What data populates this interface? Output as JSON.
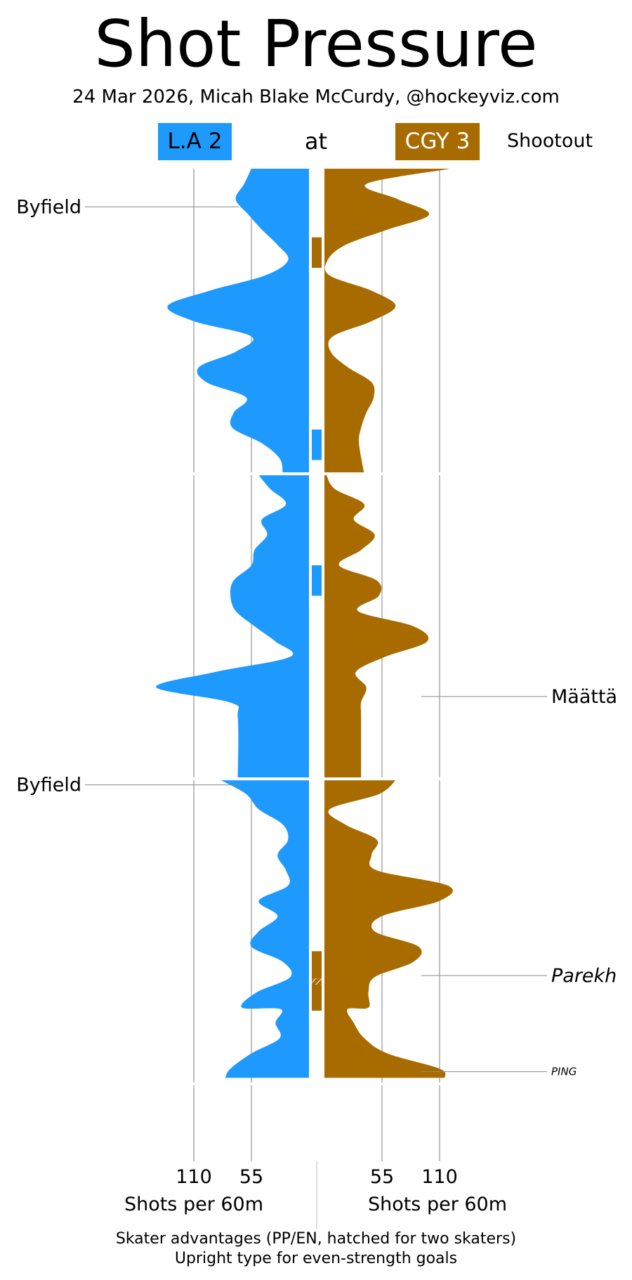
{
  "title": "Shot Pressure",
  "subtitle": "24 Mar 2026, Micah Blake McCurdy, @hockeyviz.com",
  "header": {
    "away_team": "L.A 2",
    "at": "at",
    "home_team": "CGY 3",
    "status": "Shootout"
  },
  "colors": {
    "away": "#1e9aff",
    "home": "#a86b00",
    "grid": "#aaaaaa"
  },
  "chart_data": {
    "type": "area",
    "orientation": "vertical time axis, mirrored horizontal magnitude",
    "x_unit": "game minutes",
    "period_breaks": [
      20,
      40,
      60
    ],
    "time_range": [
      0,
      65
    ],
    "ylabel_left": "Shots per 60m",
    "ylabel_right": "Shots per 60m",
    "ticks": [
      110,
      55
    ],
    "tick_labels": [
      "110",
      "55"
    ],
    "xlim": [
      0,
      150
    ],
    "series": [
      {
        "name": "L.A 2",
        "side": "left",
        "points": [
          [
            0,
            55
          ],
          [
            1,
            62
          ],
          [
            2,
            70
          ],
          [
            3,
            58
          ],
          [
            4,
            45
          ],
          [
            5,
            30
          ],
          [
            6,
            20
          ],
          [
            7,
            42
          ],
          [
            8,
            95
          ],
          [
            9,
            135
          ],
          [
            10,
            110
          ],
          [
            11,
            55
          ],
          [
            12,
            70
          ],
          [
            13,
            105
          ],
          [
            14,
            98
          ],
          [
            15,
            60
          ],
          [
            16,
            72
          ],
          [
            17,
            73
          ],
          [
            18,
            45
          ],
          [
            19,
            28
          ],
          [
            20,
            25
          ],
          [
            20.1,
            48
          ],
          [
            21,
            37
          ],
          [
            22,
            22
          ],
          [
            23,
            45
          ],
          [
            24,
            40
          ],
          [
            25,
            52
          ],
          [
            26,
            55
          ],
          [
            27,
            72
          ],
          [
            28,
            75
          ],
          [
            29,
            70
          ],
          [
            30,
            52
          ],
          [
            31,
            32
          ],
          [
            32,
            18
          ],
          [
            33,
            90
          ],
          [
            34,
            146
          ],
          [
            35,
            75
          ],
          [
            36,
            68
          ],
          [
            40,
            68
          ],
          [
            40.1,
            84
          ],
          [
            41,
            60
          ],
          [
            42,
            48
          ],
          [
            43,
            25
          ],
          [
            44,
            20
          ],
          [
            45,
            30
          ],
          [
            46,
            22
          ],
          [
            47,
            20
          ],
          [
            48,
            48
          ],
          [
            49,
            30
          ],
          [
            50,
            48
          ],
          [
            51,
            55
          ],
          [
            52,
            25
          ],
          [
            53,
            18
          ],
          [
            54,
            50
          ],
          [
            55,
            64
          ],
          [
            55.1,
            27
          ],
          [
            56,
            32
          ],
          [
            57,
            28
          ],
          [
            58,
            55
          ],
          [
            59,
            75
          ],
          [
            59.6,
            80
          ]
        ]
      },
      {
        "name": "CGY 3",
        "side": "right",
        "points": [
          [
            0,
            120
          ],
          [
            1,
            40
          ],
          [
            2,
            70
          ],
          [
            3,
            100
          ],
          [
            4,
            60
          ],
          [
            5,
            20
          ],
          [
            6,
            3
          ],
          [
            7,
            5
          ],
          [
            8,
            45
          ],
          [
            9,
            68
          ],
          [
            10,
            45
          ],
          [
            11,
            8
          ],
          [
            12,
            6
          ],
          [
            13,
            22
          ],
          [
            14,
            45
          ],
          [
            15,
            47
          ],
          [
            16,
            40
          ],
          [
            17,
            35
          ],
          [
            18,
            33
          ],
          [
            20,
            38
          ],
          [
            20.1,
            2
          ],
          [
            21,
            10
          ],
          [
            22,
            38
          ],
          [
            23,
            28
          ],
          [
            24,
            48
          ],
          [
            25,
            35
          ],
          [
            26,
            14
          ],
          [
            27,
            50
          ],
          [
            28,
            52
          ],
          [
            29,
            32
          ],
          [
            30,
            85
          ],
          [
            31,
            98
          ],
          [
            32,
            58
          ],
          [
            33,
            30
          ],
          [
            34,
            40
          ],
          [
            35,
            35
          ],
          [
            36,
            35
          ],
          [
            40,
            35
          ],
          [
            40.1,
            68
          ],
          [
            41,
            52
          ],
          [
            42,
            5
          ],
          [
            43,
            20
          ],
          [
            44,
            50
          ],
          [
            45,
            45
          ],
          [
            46,
            50
          ],
          [
            47,
            118
          ],
          [
            48,
            110
          ],
          [
            49,
            55
          ],
          [
            50,
            48
          ],
          [
            51,
            90
          ],
          [
            52,
            85
          ],
          [
            53,
            48
          ],
          [
            54,
            42
          ],
          [
            55,
            42
          ],
          [
            55.1,
            22
          ],
          [
            56,
            28
          ],
          [
            57,
            38
          ],
          [
            58,
            60
          ],
          [
            59,
            110
          ],
          [
            59.6,
            115
          ]
        ]
      }
    ],
    "strength_markers": [
      {
        "team": "CGY 3",
        "start": 4.5,
        "end": 6.5,
        "type": "advantage"
      },
      {
        "team": "L.A 2",
        "start": 17.1,
        "end": 19.1,
        "type": "advantage"
      },
      {
        "team": "L.A 2",
        "start": 26.0,
        "end": 28.0,
        "type": "advantage"
      },
      {
        "team": "CGY 3",
        "start": 51.3,
        "end": 53.1,
        "type": "advantage"
      },
      {
        "team": "CGY 3",
        "start": 53.1,
        "end": 53.5,
        "type": "two skaters"
      },
      {
        "team": "CGY 3",
        "start": 53.5,
        "end": 55.2,
        "type": "advantage"
      }
    ],
    "goals": [
      {
        "player": "Byfield",
        "team": "L.A 2",
        "time": 2.5,
        "style": "upright"
      },
      {
        "player": "Byfield",
        "team": "L.A 2",
        "time": 40.4,
        "style": "upright"
      },
      {
        "player": "Määttä",
        "team": "CGY 3",
        "time": 34.6,
        "style": "upright"
      },
      {
        "player": "Parekh",
        "team": "CGY 3",
        "time": 52.9,
        "style": "italic"
      },
      {
        "player": "PING",
        "team": "CGY 3",
        "time": 59.2,
        "style": "italic small"
      }
    ]
  },
  "footer": {
    "line1": "Skater advantages (PP/EN, hatched for two skaters)",
    "line2": "Upright type for even-strength goals"
  }
}
